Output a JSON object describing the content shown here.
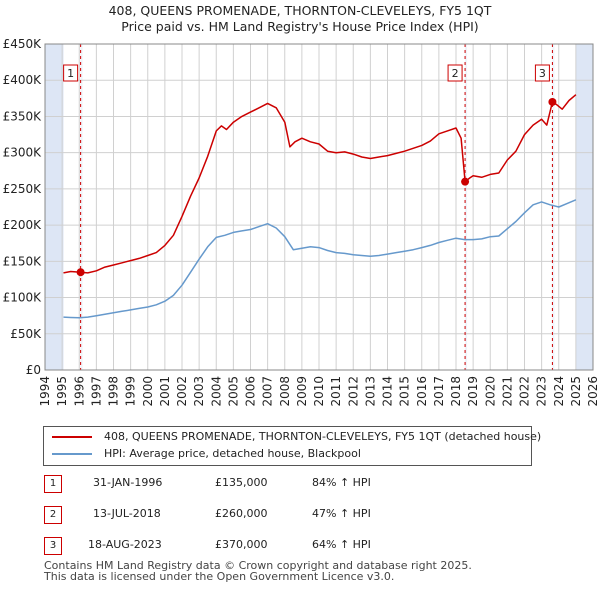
{
  "title_line1": "408, QUEENS PROMENADE, THORNTON-CLEVELEYS, FY5 1QT",
  "title_line2": "Price paid vs. HM Land Registry's House Price Index (HPI)",
  "legend": {
    "property": "408, QUEENS PROMENADE, THORNTON-CLEVELEYS, FY5 1QT (detached house)",
    "hpi": "HPI: Average price, detached house, Blackpool"
  },
  "colors": {
    "property": "#cc0000",
    "hpi": "#6699cc",
    "shade": "#dde6f5",
    "grid": "#d0d0d0"
  },
  "sales": [
    {
      "num": "1",
      "date": "31-JAN-1996",
      "price": "£135,000",
      "hpi_change": "84% ↑ HPI"
    },
    {
      "num": "2",
      "date": "13-JUL-2018",
      "price": "£260,000",
      "hpi_change": "47% ↑ HPI"
    },
    {
      "num": "3",
      "date": "18-AUG-2023",
      "price": "£370,000",
      "hpi_change": "64% ↑ HPI"
    }
  ],
  "footer_line1": "Contains HM Land Registry data © Crown copyright and database right 2025.",
  "footer_line2": "This data is licensed under the Open Government Licence v3.0.",
  "chart_data": {
    "type": "line",
    "title": "408, QUEENS PROMENADE, THORNTON-CLEVELEYS, FY5 1QT — Price paid vs. HM Land Registry's House Price Index (HPI)",
    "xlim": [
      1994,
      2026
    ],
    "ylim": [
      0,
      450000
    ],
    "x_ticks": [
      "1994",
      "1995",
      "1996",
      "1997",
      "1998",
      "1999",
      "2000",
      "2001",
      "2002",
      "2003",
      "2004",
      "2005",
      "2006",
      "2007",
      "2008",
      "2009",
      "2010",
      "2011",
      "2012",
      "2013",
      "2014",
      "2015",
      "2016",
      "2017",
      "2018",
      "2019",
      "2020",
      "2021",
      "2022",
      "2023",
      "2024",
      "2025",
      "2026"
    ],
    "y_ticks": [
      {
        "value": 0,
        "label": "£0"
      },
      {
        "value": 50000,
        "label": "£50K"
      },
      {
        "value": 100000,
        "label": "£100K"
      },
      {
        "value": 150000,
        "label": "£150K"
      },
      {
        "value": 200000,
        "label": "£200K"
      },
      {
        "value": 250000,
        "label": "£250K"
      },
      {
        "value": 300000,
        "label": "£300K"
      },
      {
        "value": 350000,
        "label": "£350K"
      },
      {
        "value": 400000,
        "label": "£400K"
      },
      {
        "value": 450000,
        "label": "£450K"
      }
    ],
    "shaded_ranges": [
      [
        1994,
        1995.08
      ],
      [
        2025.0,
        2026
      ]
    ],
    "series": [
      {
        "name": "408, QUEENS PROMENADE, THORNTON-CLEVELEYS, FY5 1QT (detached house)",
        "x": [
          1995.08,
          1995.5,
          1996.08,
          1996.5,
          1997,
          1997.5,
          1998,
          1998.5,
          1999,
          1999.5,
          2000,
          2000.5,
          2001,
          2001.5,
          2002,
          2002.5,
          2003,
          2003.5,
          2004,
          2004.3,
          2004.6,
          2005,
          2005.5,
          2006,
          2006.5,
          2007,
          2007.5,
          2008,
          2008.3,
          2008.6,
          2009,
          2009.5,
          2010,
          2010.5,
          2011,
          2011.5,
          2012,
          2012.5,
          2013,
          2013.5,
          2014,
          2014.5,
          2015,
          2015.5,
          2016,
          2016.5,
          2017,
          2017.5,
          2018,
          2018.3,
          2018.53,
          2018.8,
          2019,
          2019.5,
          2020,
          2020.5,
          2021,
          2021.5,
          2022,
          2022.5,
          2023,
          2023.3,
          2023.63,
          2023.9,
          2024.2,
          2024.6,
          2025
        ],
        "values": [
          134000,
          136000,
          135000,
          134000,
          137000,
          142000,
          145000,
          148000,
          151000,
          154000,
          158000,
          162000,
          172000,
          186000,
          212000,
          240000,
          265000,
          295000,
          330000,
          337000,
          332000,
          342000,
          350000,
          356000,
          362000,
          368000,
          362000,
          342000,
          308000,
          315000,
          320000,
          315000,
          312000,
          302000,
          300000,
          301000,
          298000,
          294000,
          292000,
          294000,
          296000,
          299000,
          302000,
          306000,
          310000,
          316000,
          326000,
          330000,
          334000,
          320000,
          260000,
          265000,
          268000,
          266000,
          270000,
          272000,
          290000,
          302000,
          325000,
          338000,
          346000,
          338000,
          370000,
          366000,
          360000,
          372000,
          380000
        ]
      },
      {
        "name": "HPI: Average price, detached house, Blackpool",
        "x": [
          1995.08,
          1995.5,
          1996,
          1996.5,
          1997,
          1997.5,
          1998,
          1998.5,
          1999,
          1999.5,
          2000,
          2000.5,
          2001,
          2001.5,
          2002,
          2002.5,
          2003,
          2003.5,
          2004,
          2004.5,
          2005,
          2005.5,
          2006,
          2006.5,
          2007,
          2007.5,
          2008,
          2008.5,
          2009,
          2009.5,
          2010,
          2010.5,
          2011,
          2011.5,
          2012,
          2012.5,
          2013,
          2013.5,
          2014,
          2014.5,
          2015,
          2015.5,
          2016,
          2016.5,
          2017,
          2017.5,
          2018,
          2018.5,
          2019,
          2019.5,
          2020,
          2020.5,
          2021,
          2021.5,
          2022,
          2022.5,
          2023,
          2023.5,
          2024,
          2024.5,
          2025
        ],
        "values": [
          73000,
          72500,
          72000,
          73000,
          75000,
          77000,
          79000,
          81000,
          83000,
          85000,
          87000,
          90000,
          95000,
          103000,
          117000,
          135000,
          153000,
          170000,
          183000,
          186000,
          190000,
          192000,
          194000,
          198000,
          202000,
          196000,
          184000,
          166000,
          168000,
          170000,
          169000,
          165000,
          162000,
          161000,
          159000,
          158000,
          157000,
          158000,
          160000,
          162000,
          164000,
          166000,
          169000,
          172000,
          176000,
          179000,
          182000,
          180000,
          180000,
          181000,
          184000,
          185000,
          195000,
          205000,
          217000,
          228000,
          232000,
          228000,
          225000,
          230000,
          235000
        ]
      }
    ],
    "markers": [
      {
        "label": "1",
        "x": 1996.08,
        "y": 135000
      },
      {
        "label": "2",
        "x": 2018.53,
        "y": 260000
      },
      {
        "label": "3",
        "x": 2023.63,
        "y": 370000
      }
    ]
  }
}
